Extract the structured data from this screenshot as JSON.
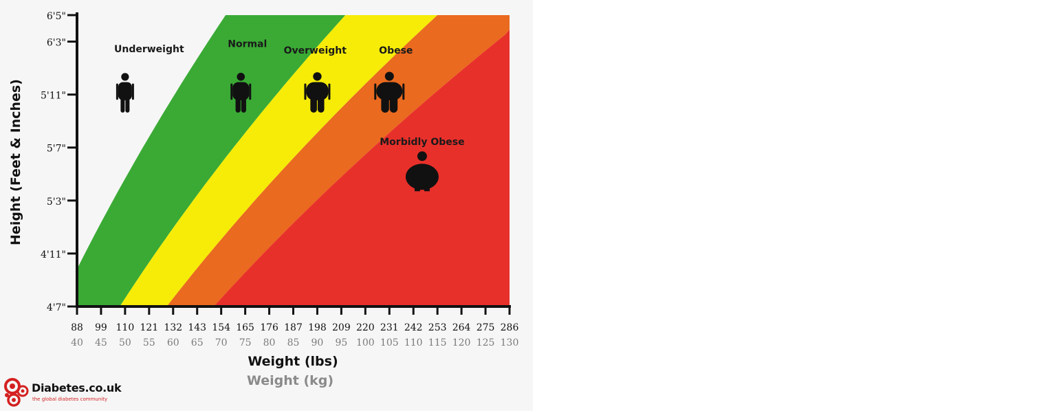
{
  "chart_data": {
    "type": "area",
    "xlabel": "Weight (lbs)",
    "xlabel_secondary": "Weight (kg)",
    "ylabel": "Height (Feet & Inches)",
    "x_ticks_lbs": [
      "88",
      "99",
      "110",
      "121",
      "132",
      "143",
      "154",
      "165",
      "176",
      "187",
      "198",
      "209",
      "220",
      "231",
      "242",
      "253",
      "264",
      "275",
      "286"
    ],
    "x_ticks_kg": [
      "40",
      "45",
      "50",
      "55",
      "60",
      "65",
      "70",
      "75",
      "80",
      "85",
      "90",
      "95",
      "100",
      "105",
      "110",
      "115",
      "120",
      "125",
      "130"
    ],
    "xlim": [
      88,
      286
    ],
    "y_ticks": [
      {
        "label": "4'7\"",
        "inches": 55
      },
      {
        "label": "4'11\"",
        "inches": 59
      },
      {
        "label": "5'3\"",
        "inches": 63
      },
      {
        "label": "5'7\"",
        "inches": 67
      },
      {
        "label": "5'11\"",
        "inches": 71
      },
      {
        "label": "6'3\"",
        "inches": 75
      },
      {
        "label": "6'5\"",
        "inches": 77
      }
    ],
    "ylim_inches": [
      55,
      77
    ],
    "bmi_boundaries": [
      18.5,
      25,
      30,
      35
    ],
    "zones": [
      {
        "name": "Underweight",
        "color": "#f6f6f6",
        "label_x": 121,
        "label_y": 74.2
      },
      {
        "name": "Normal",
        "color": "#3aaa35",
        "label_x": 166,
        "label_y": 74.6
      },
      {
        "name": "Overweight",
        "color": "#f6ec08",
        "label_x": 197,
        "label_y": 74.1
      },
      {
        "name": "Obese",
        "color": "#ea6a1f",
        "label_x": 234,
        "label_y": 74.1
      },
      {
        "name": "Morbidly Obese",
        "color": "#e8302a",
        "label_x": 246,
        "label_y": 67.2
      }
    ],
    "figures": [
      {
        "name": "underweight-figure-icon",
        "x": 110,
        "y": 70.8,
        "width": 0.3
      },
      {
        "name": "normal-figure-icon",
        "x": 163,
        "y": 70.8,
        "width": 0.4
      },
      {
        "name": "overweight-figure-icon",
        "x": 198,
        "y": 70.8,
        "width": 0.6
      },
      {
        "name": "obese-figure-icon",
        "x": 231,
        "y": 70.8,
        "width": 0.75
      },
      {
        "name": "morbidly-obese-figure-icon",
        "x": 246,
        "y": 65.0,
        "width": 1.0
      }
    ]
  },
  "brand": {
    "name": "Diabetes.co.uk",
    "tagline": "the global diabetes community",
    "color": "#d42020"
  }
}
